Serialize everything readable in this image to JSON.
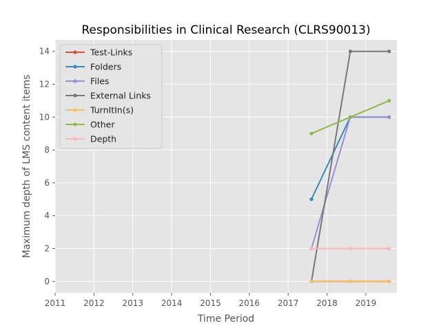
{
  "chart_data": {
    "type": "line",
    "title": "Responsibilities in Clinical Research (CLRS90013)",
    "xlabel": "Time Period",
    "ylabel": "Maximum depth of LMS content items",
    "xlim": [
      2011,
      2019.8
    ],
    "ylim": [
      -0.7,
      14.7
    ],
    "x_ticks": [
      2011,
      2012,
      2013,
      2014,
      2015,
      2016,
      2017,
      2018,
      2019
    ],
    "y_ticks": [
      0,
      2,
      4,
      6,
      8,
      10,
      12,
      14
    ],
    "grid": true,
    "legend_position": "top-left",
    "x": [
      2017.6,
      2018.6,
      2019.6
    ],
    "series": [
      {
        "name": "Test-Links",
        "color": "#E24A33",
        "values": [
          0,
          0,
          0
        ]
      },
      {
        "name": "Folders",
        "color": "#348ABD",
        "values": [
          5,
          10,
          10
        ]
      },
      {
        "name": "Files",
        "color": "#988ED5",
        "values": [
          2,
          10,
          10
        ]
      },
      {
        "name": "External Links",
        "color": "#777777",
        "values": [
          0,
          14,
          14
        ]
      },
      {
        "name": "TurnItIn(s)",
        "color": "#FBC15E",
        "values": [
          0,
          0,
          0
        ]
      },
      {
        "name": "Other",
        "color": "#8EBA42",
        "values": [
          9,
          10,
          11
        ]
      },
      {
        "name": "Depth",
        "color": "#FFB5B8",
        "values": [
          2,
          2,
          2
        ]
      }
    ]
  }
}
